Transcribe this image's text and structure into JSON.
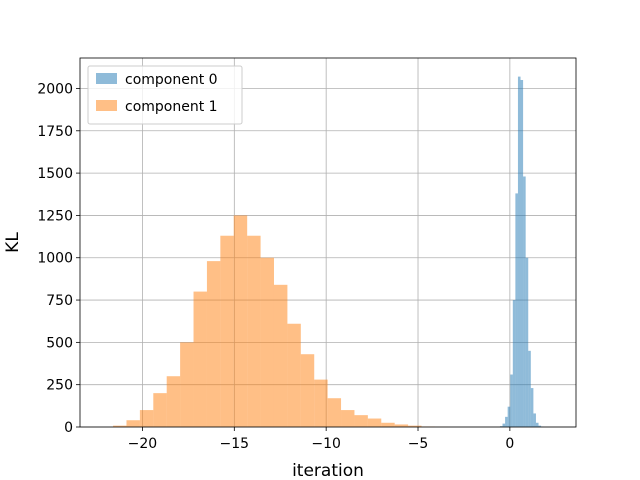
{
  "chart_data": {
    "type": "histogram",
    "title": "",
    "xlabel": "iteration",
    "ylabel": "KL",
    "xlim": [
      -23.4,
      3.6
    ],
    "ylim": [
      0,
      2180
    ],
    "xticks": [
      -20,
      -15,
      -10,
      -5,
      0
    ],
    "xtick_labels": [
      "−20",
      "−15",
      "−10",
      "−5",
      "0"
    ],
    "yticks": [
      0,
      250,
      500,
      750,
      1000,
      1250,
      1500,
      1750,
      2000
    ],
    "ytick_labels": [
      "0",
      "250",
      "500",
      "750",
      "1000",
      "1250",
      "1500",
      "1750",
      "2000"
    ],
    "grid": true,
    "legend_position": "upper left",
    "series": [
      {
        "name": "component 0",
        "color": "#1f77b4",
        "alpha": 0.5,
        "bin_edges": [
          -0.54,
          -0.4,
          -0.26,
          -0.12,
          0.02,
          0.16,
          0.3,
          0.44,
          0.58,
          0.72,
          0.86,
          1.0,
          1.14,
          1.28,
          1.42,
          1.56,
          1.7,
          1.84
        ],
        "counts": [
          5,
          20,
          60,
          120,
          310,
          750,
          1380,
          2070,
          2050,
          1480,
          1000,
          450,
          230,
          80,
          25,
          8,
          2
        ]
      },
      {
        "name": "component 1",
        "color": "#ff7f0e",
        "alpha": 0.5,
        "bin_edges": [
          -21.6,
          -20.87,
          -20.14,
          -19.41,
          -18.68,
          -17.95,
          -17.22,
          -16.49,
          -15.76,
          -15.03,
          -14.3,
          -13.57,
          -12.84,
          -12.11,
          -11.38,
          -10.65,
          -9.92,
          -9.19,
          -8.46,
          -7.73,
          -7.0,
          -6.27,
          -5.54,
          -4.81,
          -4.08,
          -3.35,
          -2.62
        ],
        "counts": [
          8,
          40,
          100,
          200,
          300,
          500,
          800,
          980,
          1130,
          1250,
          1130,
          1000,
          840,
          610,
          430,
          280,
          170,
          100,
          70,
          50,
          25,
          15,
          8,
          3,
          1,
          0
        ]
      }
    ]
  }
}
